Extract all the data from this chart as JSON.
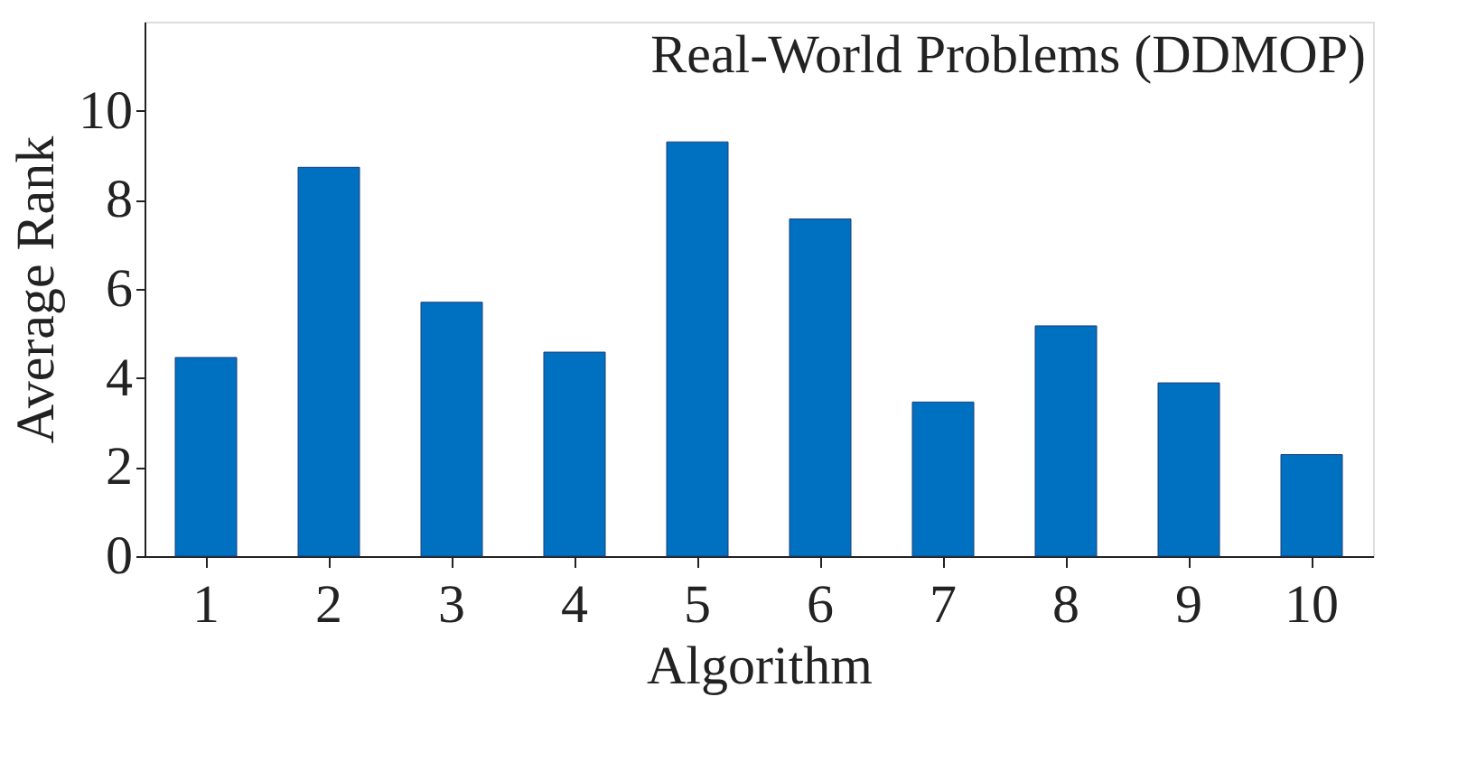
{
  "chart_data": {
    "type": "bar",
    "title": "Real-World Problems (DDMOP)",
    "xlabel": "Algorithm",
    "ylabel": "Average Rank",
    "categories": [
      "1",
      "2",
      "3",
      "4",
      "5",
      "6",
      "7",
      "8",
      "9",
      "10"
    ],
    "values": [
      4.46,
      8.73,
      5.7,
      4.58,
      9.3,
      7.57,
      3.46,
      5.17,
      3.89,
      2.28
    ],
    "color": "#0070c0",
    "ylim": [
      0,
      12
    ],
    "yticks": [
      0,
      2,
      4,
      6,
      8,
      10
    ],
    "grid": false
  }
}
